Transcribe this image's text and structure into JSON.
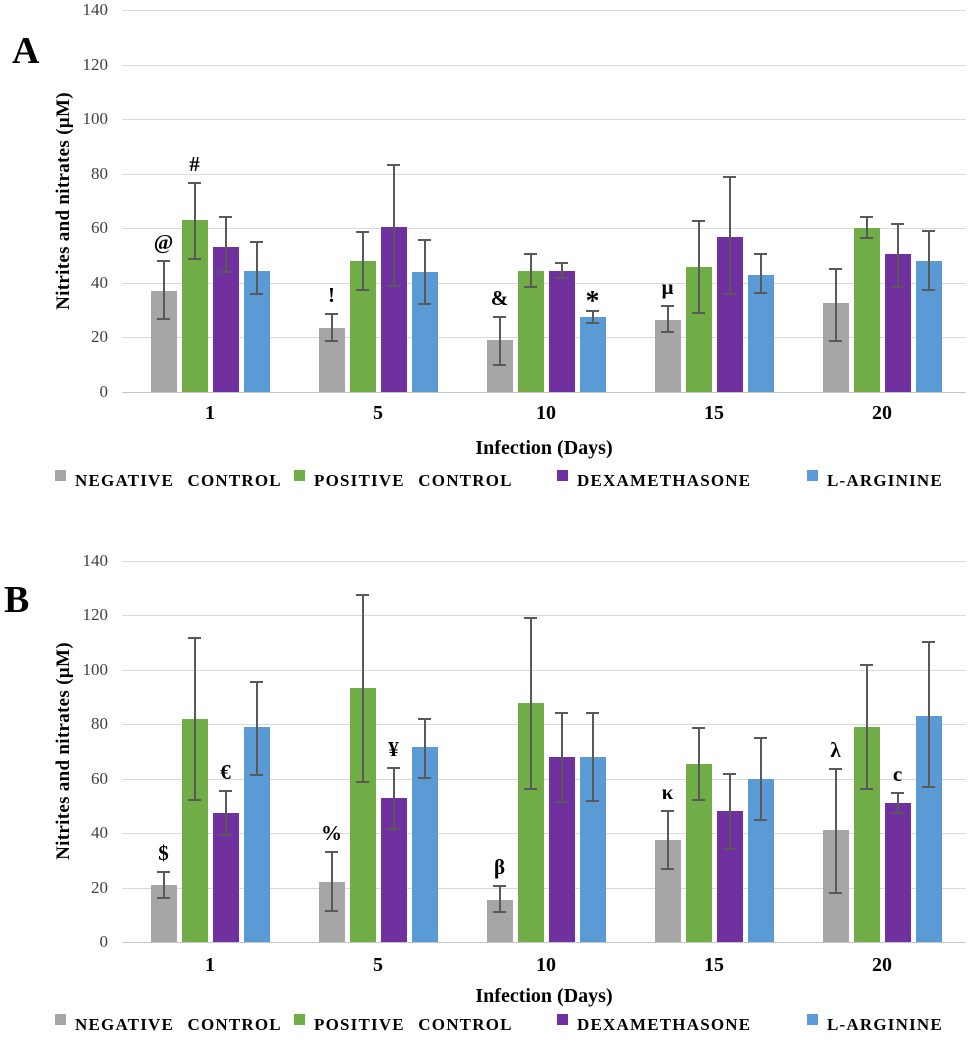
{
  "figure": {
    "description": "Two-panel bar chart of nitrites and nitrates levels over infection days"
  },
  "chart_data": [
    {
      "type": "bar",
      "panel_label": "A",
      "title": "",
      "xlabel": "Infection (Days)",
      "ylabel": "Nitrites and nitrates (µM)",
      "ylim": [
        0,
        140
      ],
      "yticks": [
        0,
        20,
        40,
        60,
        80,
        100,
        120,
        140
      ],
      "grid": true,
      "legend_position": "bottom",
      "categories": [
        "1",
        "5",
        "10",
        "15",
        "20"
      ],
      "series": [
        {
          "name": "NEGATIVE CONTROL",
          "color": "#a6a6a6",
          "values": [
            37,
            23.5,
            19,
            26.5,
            32.5
          ],
          "err_low": [
            26.5,
            18.5,
            9.5,
            21.5,
            18.5
          ],
          "err_high": [
            48.5,
            29,
            28,
            32,
            45.5
          ],
          "annotations": [
            "@",
            "!",
            "&",
            "µ",
            ""
          ]
        },
        {
          "name": "POSITIVE CONTROL",
          "color": "#70ad47",
          "values": [
            63,
            48,
            44.5,
            46,
            60
          ],
          "err_low": [
            48.5,
            37,
            38,
            28.5,
            56
          ],
          "err_high": [
            77,
            59,
            51,
            63,
            64.5
          ],
          "annotations": [
            "#",
            "",
            "",
            "",
            ""
          ]
        },
        {
          "name": "DEXAMETHASONE",
          "color": "#7030a0",
          "values": [
            53,
            60.5,
            44.5,
            57,
            50.5
          ],
          "err_low": [
            43.5,
            38.5,
            41.5,
            35.5,
            38
          ],
          "err_high": [
            64.5,
            83.5,
            47.5,
            79,
            62
          ],
          "annotations": [
            "",
            "",
            "",
            "",
            ""
          ]
        },
        {
          "name": "L-ARGININE",
          "color": "#5b9bd5",
          "values": [
            44.5,
            44,
            27.5,
            43,
            48
          ],
          "err_low": [
            35.5,
            32,
            25,
            36,
            37
          ],
          "err_high": [
            55.5,
            56,
            30,
            51,
            59.5
          ],
          "annotations": [
            "",
            "",
            "*",
            "",
            ""
          ]
        }
      ]
    },
    {
      "type": "bar",
      "panel_label": "B",
      "title": "",
      "xlabel": "Infection (Days)",
      "ylabel": "Nitrites and nitrates (µM)",
      "ylim": [
        0,
        140
      ],
      "yticks": [
        0,
        20,
        40,
        60,
        80,
        100,
        120,
        140
      ],
      "grid": true,
      "legend_position": "bottom",
      "categories": [
        "1",
        "5",
        "10",
        "15",
        "20"
      ],
      "series": [
        {
          "name": "NEGATIVE CONTROL",
          "color": "#a6a6a6",
          "values": [
            21,
            22,
            15.5,
            37.5,
            41
          ],
          "err_low": [
            16,
            11,
            10.5,
            26.5,
            17.5
          ],
          "err_high": [
            26,
            33.5,
            21,
            48.5,
            64
          ],
          "annotations": [
            "$",
            "%",
            "β",
            "κ",
            "λ"
          ]
        },
        {
          "name": "POSITIVE CONTROL",
          "color": "#70ad47",
          "values": [
            82,
            93.5,
            88,
            65.5,
            79
          ],
          "err_low": [
            52,
            58.5,
            56,
            52,
            56
          ],
          "err_high": [
            112,
            128,
            119.5,
            79,
            102
          ],
          "annotations": [
            "",
            "",
            "",
            "",
            ""
          ]
        },
        {
          "name": "DEXAMETHASONE",
          "color": "#7030a0",
          "values": [
            47.5,
            53,
            68,
            48,
            51
          ],
          "err_low": [
            39,
            41,
            51,
            34,
            47
          ],
          "err_high": [
            56,
            64.5,
            84.5,
            62,
            55
          ],
          "annotations": [
            "€",
            "¥",
            "",
            "",
            "c"
          ]
        },
        {
          "name": "L-ARGININE",
          "color": "#5b9bd5",
          "values": [
            79,
            71.5,
            68,
            60,
            83
          ],
          "err_low": [
            61,
            60,
            51.5,
            44.5,
            56.5
          ],
          "err_high": [
            96,
            82.5,
            84.5,
            75.5,
            110.5
          ],
          "annotations": [
            "",
            "",
            "",
            "",
            ""
          ]
        }
      ]
    }
  ]
}
